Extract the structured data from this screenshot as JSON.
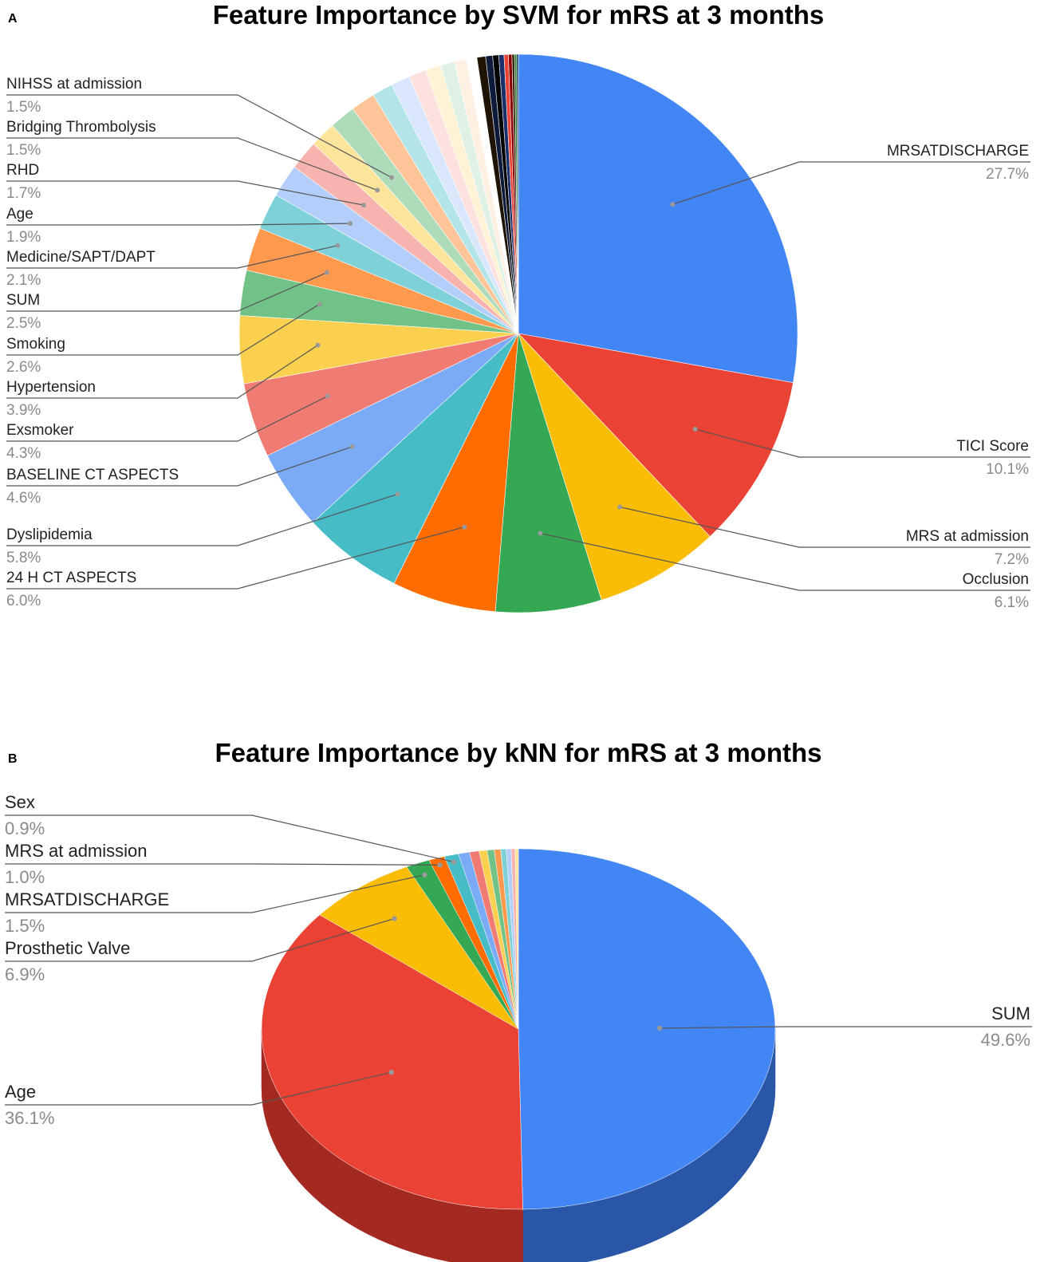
{
  "chart_data": [
    {
      "panel": "A",
      "type": "pie",
      "title": "Feature Importance by SVM for mRS at 3 months",
      "slices": [
        {
          "label": "MRSATDISCHARGE",
          "pct": "27.7%",
          "value": 27.7,
          "color": "#4285f4",
          "labelled": true
        },
        {
          "label": "TICI Score",
          "pct": "10.1%",
          "value": 10.1,
          "color": "#ea4335",
          "labelled": true
        },
        {
          "label": "MRS at admission",
          "pct": "7.2%",
          "value": 7.2,
          "color": "#fbbc04",
          "labelled": true
        },
        {
          "label": "Occlusion",
          "pct": "6.1%",
          "value": 6.1,
          "color": "#34a853",
          "labelled": true
        },
        {
          "label": "24 H CT ASPECTS",
          "pct": "6.0%",
          "value": 6.0,
          "color": "#ff6d01",
          "labelled": true
        },
        {
          "label": "Dyslipidemia",
          "pct": "5.8%",
          "value": 5.8,
          "color": "#46bdc6",
          "labelled": true
        },
        {
          "label": "BASELINE CT ASPECTS",
          "pct": "4.6%",
          "value": 4.6,
          "color": "#7baaf7",
          "labelled": true
        },
        {
          "label": "Exsmoker",
          "pct": "4.3%",
          "value": 4.3,
          "color": "#f07b72",
          "labelled": true
        },
        {
          "label": "Hypertension",
          "pct": "3.9%",
          "value": 3.9,
          "color": "#fcd04f",
          "labelled": true
        },
        {
          "label": "Smoking",
          "pct": "2.6%",
          "value": 2.6,
          "color": "#71c287",
          "labelled": true
        },
        {
          "label": "SUM",
          "pct": "2.5%",
          "value": 2.5,
          "color": "#ff994d",
          "labelled": true
        },
        {
          "label": "Medicine/SAPT/DAPT",
          "pct": "2.1%",
          "value": 2.1,
          "color": "#7ed1d7",
          "labelled": true
        },
        {
          "label": "Age",
          "pct": "1.9%",
          "value": 1.9,
          "color": "#b3cefb",
          "labelled": true
        },
        {
          "label": "RHD",
          "pct": "1.7%",
          "value": 1.7,
          "color": "#f7b4ae",
          "labelled": true
        },
        {
          "label": "Bridging Thrombolysis",
          "pct": "1.5%",
          "value": 1.5,
          "color": "#fde49b",
          "labelled": true
        },
        {
          "label": "NIHSS at admission",
          "pct": "1.5%",
          "value": 1.5,
          "color": "#aedcba",
          "labelled": true
        },
        {
          "label": "",
          "pct": "",
          "value": 1.4,
          "color": "#ffc599",
          "labelled": false
        },
        {
          "label": "",
          "pct": "",
          "value": 1.2,
          "color": "#b3e5e8",
          "labelled": false
        },
        {
          "label": "",
          "pct": "",
          "value": 1.1,
          "color": "#d9e6fc",
          "labelled": false
        },
        {
          "label": "",
          "pct": "",
          "value": 1.0,
          "color": "#fce1de",
          "labelled": false
        },
        {
          "label": "",
          "pct": "",
          "value": 0.9,
          "color": "#fef3d4",
          "labelled": false
        },
        {
          "label": "",
          "pct": "",
          "value": 0.8,
          "color": "#dff1e4",
          "labelled": false
        },
        {
          "label": "",
          "pct": "",
          "value": 0.7,
          "color": "#fff0e4",
          "labelled": false
        },
        {
          "label": "",
          "pct": "",
          "value": 0.6,
          "color": "#ffffff",
          "labelled": false
        },
        {
          "label": "",
          "pct": "",
          "value": 0.5,
          "color": "#1f1305",
          "labelled": false
        },
        {
          "label": "",
          "pct": "",
          "value": 0.4,
          "color": "#0d1a3a",
          "labelled": false
        },
        {
          "label": "",
          "pct": "",
          "value": 0.35,
          "color": "#050505",
          "labelled": false
        },
        {
          "label": "",
          "pct": "",
          "value": 0.3,
          "color": "#1b2f6b",
          "labelled": false
        },
        {
          "label": "",
          "pct": "",
          "value": 0.25,
          "color": "#ea4335",
          "labelled": false
        },
        {
          "label": "",
          "pct": "",
          "value": 0.2,
          "color": "#8b0000",
          "labelled": false
        },
        {
          "label": "",
          "pct": "",
          "value": 0.15,
          "color": "#3b2a10",
          "labelled": false
        },
        {
          "label": "",
          "pct": "",
          "value": 0.12,
          "color": "#2e7d32",
          "labelled": false
        },
        {
          "label": "",
          "pct": "",
          "value": 0.1,
          "color": "#1a3a5c",
          "labelled": false
        }
      ]
    },
    {
      "panel": "B",
      "type": "pie",
      "title": "Feature Importance by kNN for mRS at 3 months",
      "slices": [
        {
          "label": "SUM",
          "pct": "49.6%",
          "value": 49.6,
          "color": "#4285f4",
          "side": "#2a56a8",
          "labelled": true
        },
        {
          "label": "Age",
          "pct": "36.1%",
          "value": 36.1,
          "color": "#ea4335",
          "side": "#a42a21",
          "labelled": true
        },
        {
          "label": "Prosthetic Valve",
          "pct": "6.9%",
          "value": 6.9,
          "color": "#fbbc04",
          "side": "#b08300",
          "labelled": true
        },
        {
          "label": "MRSATDISCHARGE",
          "pct": "1.5%",
          "value": 1.5,
          "color": "#34a853",
          "side": "#22753a",
          "labelled": true
        },
        {
          "label": "MRS at admission",
          "pct": "1.0%",
          "value": 1.0,
          "color": "#ff6d01",
          "side": "#b34c00",
          "labelled": true
        },
        {
          "label": "Sex",
          "pct": "0.9%",
          "value": 0.9,
          "color": "#46bdc6",
          "side": "#2f858b",
          "labelled": true
        },
        {
          "label": "",
          "pct": "",
          "value": 0.7,
          "color": "#7baaf7",
          "side": "#5677ad",
          "labelled": false
        },
        {
          "label": "",
          "pct": "",
          "value": 0.6,
          "color": "#f07b72",
          "side": "#a85650",
          "labelled": false
        },
        {
          "label": "",
          "pct": "",
          "value": 0.5,
          "color": "#fcd04f",
          "side": "#b09137",
          "labelled": false
        },
        {
          "label": "",
          "pct": "",
          "value": 0.45,
          "color": "#71c287",
          "side": "#4f885e",
          "labelled": false
        },
        {
          "label": "",
          "pct": "",
          "value": 0.4,
          "color": "#ff994d",
          "side": "#b36b36",
          "labelled": false
        },
        {
          "label": "",
          "pct": "",
          "value": 0.35,
          "color": "#7ed1d7",
          "side": "#589296",
          "labelled": false
        },
        {
          "label": "",
          "pct": "",
          "value": 0.3,
          "color": "#b3cefb",
          "side": "#7d90b0",
          "labelled": false
        },
        {
          "label": "",
          "pct": "",
          "value": 0.25,
          "color": "#f7b4ae",
          "side": "#ad7e7a",
          "labelled": false
        },
        {
          "label": "",
          "pct": "",
          "value": 0.2,
          "color": "#fde49b",
          "side": "#b1a06d",
          "labelled": false
        }
      ]
    }
  ]
}
